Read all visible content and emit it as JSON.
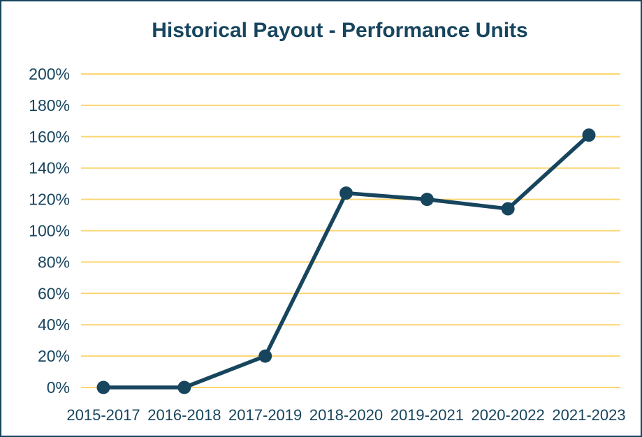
{
  "chart": {
    "title": "Historical Payout - Performance Units",
    "colors": {
      "navy": "#17455e",
      "gridline": "#fcd672",
      "background": "#ffffff"
    }
  },
  "chart_data": {
    "type": "line",
    "title": "Historical Payout - Performance Units",
    "categories": [
      "2015-2017",
      "2016-2018",
      "2017-2019",
      "2018-2020",
      "2019-2021",
      "2020-2022",
      "2021-2023"
    ],
    "values": [
      0,
      0,
      20,
      124,
      120,
      114,
      161
    ],
    "xlabel": "",
    "ylabel": "",
    "ylim": [
      0,
      200
    ],
    "ytick_step": 20,
    "ytick_suffix": "%",
    "grid": "horizontal",
    "legend": "none",
    "marker": "circle",
    "line_color": "#17455e",
    "gridline_color": "#fcd672"
  }
}
